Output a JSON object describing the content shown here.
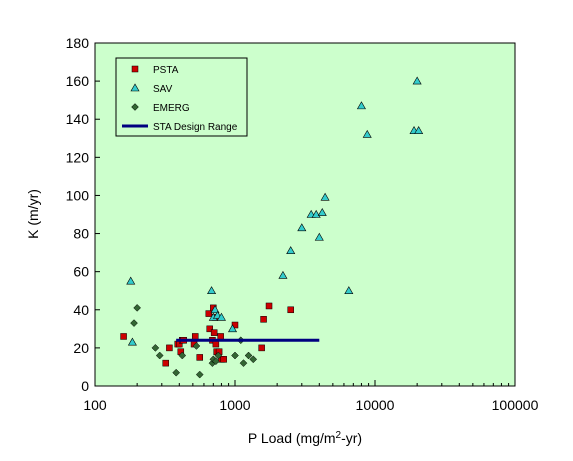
{
  "chart_data": {
    "type": "scatter",
    "title": "",
    "xlabel": "P Load (mg/m",
    "xlabel_sup": "2",
    "xlabel_suffix": "-yr)",
    "ylabel": "K (m/yr)",
    "xscale": "log",
    "xlim": [
      100,
      100000
    ],
    "ylim": [
      0,
      180
    ],
    "x_ticks": [
      100,
      1000,
      10000,
      100000
    ],
    "x_tick_labels": [
      "100",
      "1000",
      "10000",
      "100000"
    ],
    "y_ticks": [
      0,
      20,
      40,
      60,
      80,
      100,
      120,
      140,
      160,
      180
    ],
    "y_tick_labels": [
      "0",
      "20",
      "40",
      "60",
      "80",
      "100",
      "120",
      "140",
      "160",
      "180"
    ],
    "grid": false,
    "legend_position": "top-left",
    "plot_background": "#ccffcc",
    "series": [
      {
        "name": "PSTA",
        "marker": "square",
        "color": "#cc0000",
        "x": [
          160,
          320,
          340,
          390,
          400,
          410,
          420,
          430,
          510,
          520,
          560,
          650,
          660,
          690,
          700,
          710,
          720,
          730,
          740,
          770,
          790,
          800,
          830,
          1000,
          1550,
          1600,
          1750,
          2500
        ],
        "y": [
          26,
          12,
          20,
          22,
          22,
          18,
          24,
          24,
          22,
          26,
          15,
          38,
          30,
          24,
          41,
          28,
          36,
          22,
          18,
          18,
          26,
          14,
          14,
          32,
          20,
          35,
          42,
          40
        ]
      },
      {
        "name": "SAV",
        "marker": "triangle",
        "color": "#33cccc",
        "x": [
          180,
          185,
          680,
          700,
          720,
          750,
          800,
          960,
          2200,
          2500,
          3000,
          3500,
          3800,
          4000,
          4200,
          4400,
          6500,
          8000,
          8800,
          19000,
          20000,
          20500
        ],
        "y": [
          55,
          23,
          50,
          36,
          40,
          37,
          36,
          30,
          58,
          71,
          83,
          90,
          90,
          78,
          91,
          99,
          50,
          147,
          132,
          134,
          160,
          134
        ]
      },
      {
        "name": "EMERG",
        "marker": "diamond",
        "color": "#336633",
        "x": [
          190,
          200,
          270,
          290,
          380,
          420,
          530,
          560,
          690,
          700,
          730,
          760,
          1000,
          1100,
          1150,
          1250,
          1350
        ],
        "y": [
          33,
          41,
          20,
          16,
          7,
          16,
          21,
          6,
          12,
          14,
          13,
          16,
          16,
          24,
          12,
          16,
          14
        ]
      },
      {
        "name": "STA Design Range",
        "marker": "line",
        "color": "#000080",
        "x": [
          380,
          4000
        ],
        "y": [
          24,
          24
        ]
      }
    ]
  }
}
